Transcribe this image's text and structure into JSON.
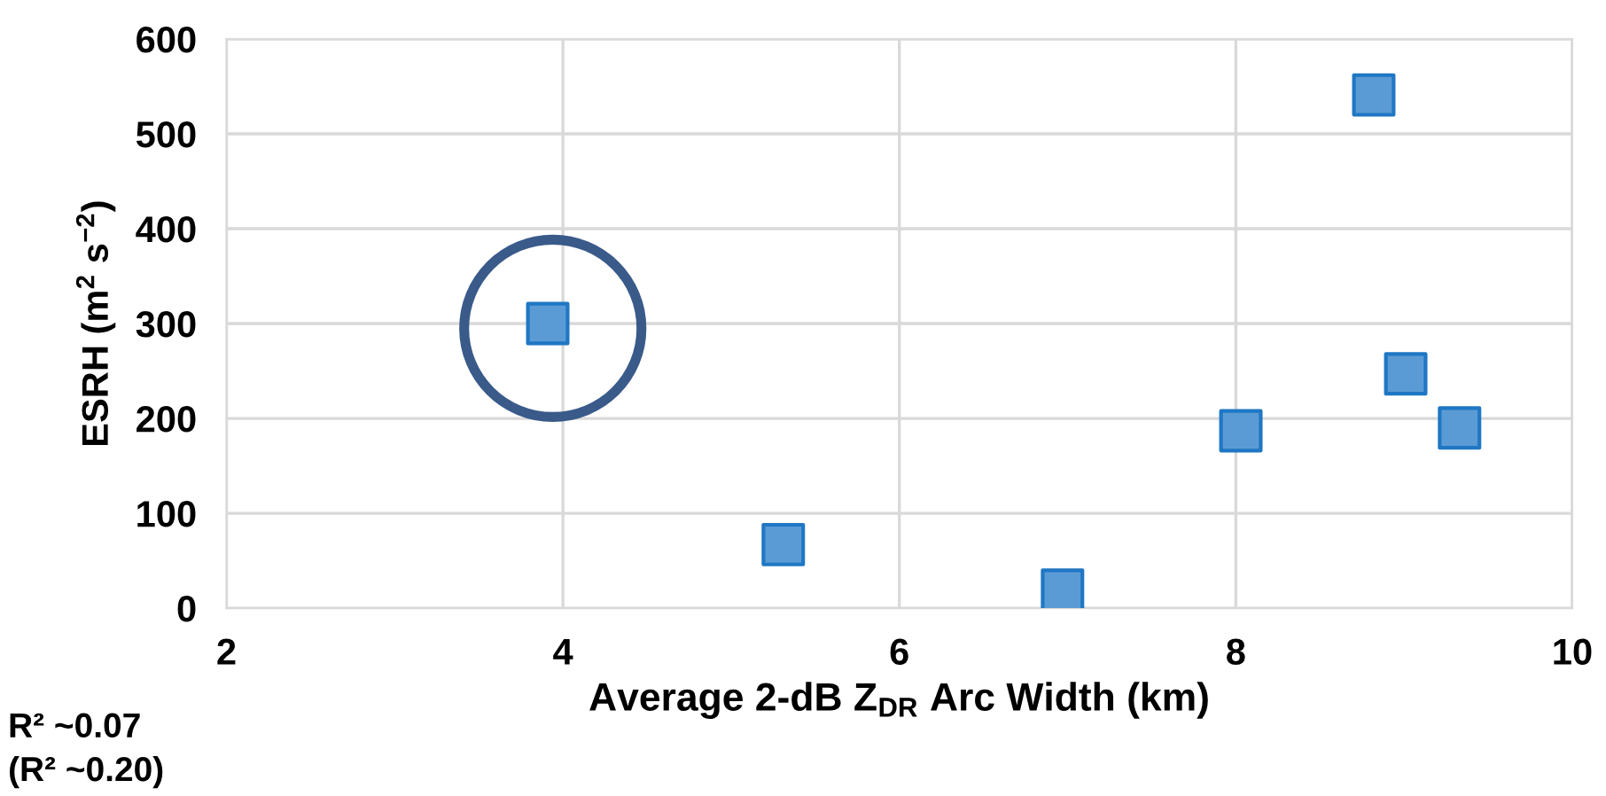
{
  "chart_data": {
    "type": "scatter",
    "xlabel": "Average 2-dB Z$_{DR}$ Arc Width (km)",
    "ylabel": "ESRH (m$^{2}$ s$^{−2}$)",
    "x": [
      3.91,
      5.31,
      6.97,
      8.03,
      8.82,
      9.01,
      9.33
    ],
    "series": [
      {
        "color": "#5b9bd5",
        "values": [
          300,
          67,
          19,
          187,
          541,
          247,
          190
        ]
      }
    ],
    "xlim": [
      2,
      10
    ],
    "xticks": [
      2,
      4,
      6,
      8,
      10
    ],
    "ylim": [
      0,
      600
    ],
    "yticks": [
      0,
      100,
      200,
      300,
      400,
      500,
      600
    ],
    "grid": true,
    "marker": "square",
    "legend": false,
    "annotations": [
      "R² ~0.07",
      "(R² ~0.20)"
    ]
  }
}
